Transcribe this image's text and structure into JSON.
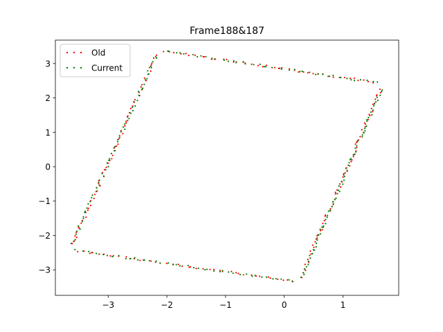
{
  "chart_data": {
    "type": "scatter",
    "title": "Frame188&187",
    "xlabel": "",
    "ylabel": "",
    "xlim": [
      -3.9,
      1.95
    ],
    "ylim": [
      -3.74,
      3.68
    ],
    "xticks": [
      -3,
      -2,
      -1,
      0,
      1
    ],
    "yticks": [
      -3,
      -2,
      -1,
      0,
      1,
      2,
      3
    ],
    "xtick_labels": [
      "−3",
      "−2",
      "−1",
      "0",
      "1"
    ],
    "ytick_labels": [
      "−3",
      "−2",
      "−1",
      "0",
      "1",
      "2",
      "3"
    ],
    "grid": false,
    "legend_position": "top-left",
    "shape": {
      "description_vertices": {
        "top_left": [
          -2.15,
          3.38
        ],
        "top_right": [
          1.68,
          2.42
        ],
        "bottom_right": [
          0.25,
          -3.35
        ],
        "bottom_left": [
          -3.65,
          -2.42
        ]
      }
    },
    "series": [
      {
        "name": "Old",
        "color": "#ff0000",
        "vertices": [
          [
            -2.15,
            3.38
          ],
          [
            1.68,
            2.42
          ],
          [
            0.25,
            -3.35
          ],
          [
            -3.65,
            -2.42
          ]
        ],
        "points_per_edge": [
          42,
          68,
          42,
          62
        ],
        "jitter": 0.03,
        "edge_end_trim": 0.02
      },
      {
        "name": "Current",
        "color": "#008000",
        "vertices": [
          [
            -2.14,
            3.39
          ],
          [
            1.69,
            2.41
          ],
          [
            0.26,
            -3.36
          ],
          [
            -3.66,
            -2.41
          ]
        ],
        "points_per_edge": [
          42,
          74,
          42,
          62
        ],
        "jitter": 0.03,
        "edge_end_trim": 0.02
      }
    ]
  }
}
